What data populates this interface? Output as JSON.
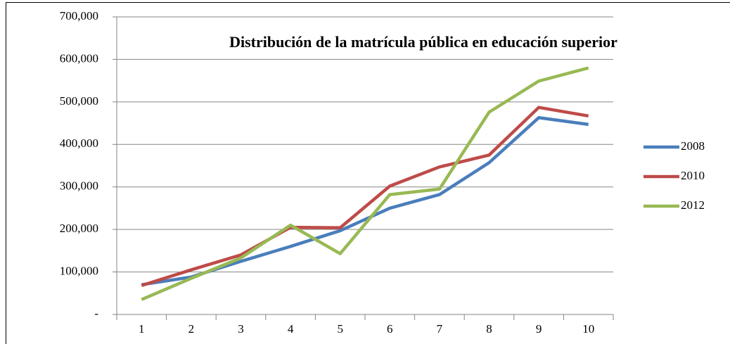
{
  "chart_data": {
    "type": "line",
    "title": "Distribución de la matrícula pública en educación superior",
    "categories": [
      "1",
      "2",
      "3",
      "4",
      "5",
      "6",
      "7",
      "8",
      "9",
      "10"
    ],
    "series": [
      {
        "name": "2008",
        "color": "#4a7ebb",
        "values": [
          70000,
          88000,
          125000,
          160000,
          197000,
          250000,
          282000,
          357000,
          463000,
          447000
        ]
      },
      {
        "name": "2010",
        "color": "#be4b48",
        "values": [
          68000,
          105000,
          140000,
          205000,
          204000,
          302000,
          347000,
          375000,
          487000,
          467000
        ]
      },
      {
        "name": "2012",
        "color": "#98b954",
        "values": [
          35000,
          85000,
          133000,
          210000,
          143000,
          282000,
          295000,
          476000,
          549000,
          580000
        ]
      }
    ],
    "ylim": [
      0,
      700000
    ],
    "yticks": [
      {
        "value": 0,
        "label": "-"
      },
      {
        "value": 100000,
        "label": "100,000"
      },
      {
        "value": 200000,
        "label": "200,000"
      },
      {
        "value": 300000,
        "label": "300,000"
      },
      {
        "value": 400000,
        "label": "400,000"
      },
      {
        "value": 500000,
        "label": "500,000"
      },
      {
        "value": 600000,
        "label": "600,000"
      },
      {
        "value": 700000,
        "label": "700,000"
      }
    ],
    "grid": true,
    "legend": "right"
  }
}
